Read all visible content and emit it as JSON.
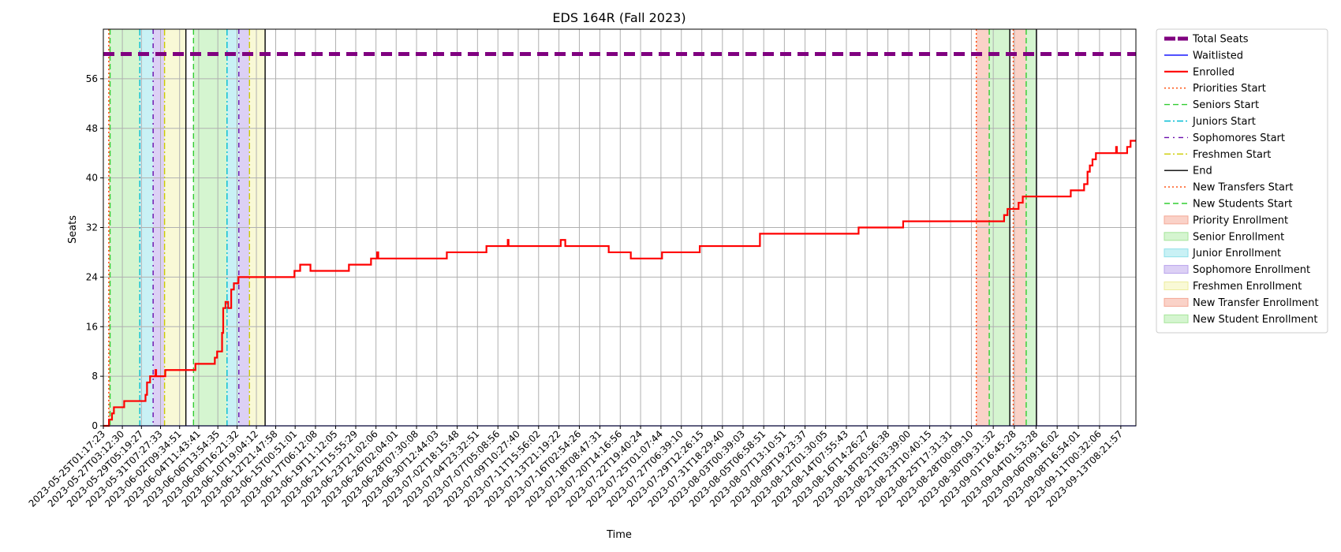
{
  "chart_data": {
    "type": "line",
    "title": "EDS 164R (Fall 2023)",
    "xlabel": "Time",
    "ylabel": "Seats",
    "ylim": [
      0,
      64
    ],
    "yticks": [
      0,
      8,
      16,
      24,
      32,
      40,
      48,
      56
    ],
    "grid": true,
    "legend_placement": "outside-right",
    "xrange": [
      "2023-05-25T01:17:23",
      "2023-09-15T00:00:00"
    ],
    "xticks": [
      "2023-05-25T01:17:23",
      "2023-05-27T03:12:30",
      "2023-05-29T05:19:27",
      "2023-05-31T07:27:33",
      "2023-06-02T09:34:51",
      "2023-06-04T11:43:41",
      "2023-06-06T13:54:35",
      "2023-06-08T16:21:32",
      "2023-06-10T19:04:12",
      "2023-06-12T21:47:58",
      "2023-06-15T00:51:01",
      "2023-06-17T06:12:08",
      "2023-06-19T11:12:05",
      "2023-06-21T15:55:29",
      "2023-06-23T21:02:06",
      "2023-06-26T02:04:01",
      "2023-06-28T07:30:08",
      "2023-06-30T12:44:03",
      "2023-07-02T18:15:48",
      "2023-07-04T23:32:51",
      "2023-07-07T05:08:56",
      "2023-07-09T10:27:40",
      "2023-07-11T15:56:02",
      "2023-07-13T21:19:22",
      "2023-07-16T02:54:26",
      "2023-07-18T08:47:31",
      "2023-07-20T14:16:56",
      "2023-07-22T19:40:24",
      "2023-07-25T01:07:44",
      "2023-07-27T06:39:10",
      "2023-07-29T12:26:15",
      "2023-07-31T18:29:40",
      "2023-08-03T00:39:03",
      "2023-08-05T06:58:51",
      "2023-08-07T13:10:51",
      "2023-08-09T19:23:37",
      "2023-08-12T01:30:05",
      "2023-08-14T07:55:43",
      "2023-08-16T14:26:27",
      "2023-08-18T20:56:38",
      "2023-08-21T03:39:00",
      "2023-08-23T10:40:15",
      "2023-08-25T17:31:31",
      "2023-08-28T00:09:10",
      "2023-08-30T09:31:32",
      "2023-09-01T16:45:28",
      "2023-09-04T01:53:28",
      "2023-09-06T09:16:02",
      "2023-09-08T16:54:01",
      "2023-09-11T00:32:06",
      "2023-09-13T08:21:57"
    ],
    "series": [
      {
        "name": "Total Seats",
        "color": "#800080",
        "style": "dashed-thick",
        "points": [
          [
            "2023-05-25T01:17:23",
            60
          ],
          [
            "2023-09-15T00:00:00",
            60
          ]
        ]
      },
      {
        "name": "Waitlisted",
        "color": "#0000ff",
        "style": "solid",
        "points": [
          [
            "2023-05-25T01:17:23",
            0
          ],
          [
            "2023-09-15T00:00:00",
            0
          ]
        ]
      },
      {
        "name": "Enrolled",
        "color": "#ff0000",
        "style": "step",
        "points": [
          [
            "2023-05-25T01:17:23",
            0
          ],
          [
            "2023-05-25T16:00:00",
            1
          ],
          [
            "2023-05-26T00:00:00",
            2
          ],
          [
            "2023-05-26T05:00:00",
            3
          ],
          [
            "2023-05-27T08:00:00",
            4
          ],
          [
            "2023-05-29T16:00:00",
            5
          ],
          [
            "2023-05-29T20:00:00",
            7
          ],
          [
            "2023-05-30T04:00:00",
            8
          ],
          [
            "2023-05-30T18:00:00",
            9
          ],
          [
            "2023-05-30T20:00:00",
            8
          ],
          [
            "2023-05-31T20:00:00",
            9
          ],
          [
            "2023-06-04T03:00:00",
            10
          ],
          [
            "2023-06-06T06:00:00",
            11
          ],
          [
            "2023-06-06T12:00:00",
            12
          ],
          [
            "2023-06-07T01:00:00",
            15
          ],
          [
            "2023-06-07T04:00:00",
            19
          ],
          [
            "2023-06-07T10:00:00",
            20
          ],
          [
            "2023-06-07T17:00:00",
            19
          ],
          [
            "2023-06-08T01:00:00",
            22
          ],
          [
            "2023-06-08T08:00:00",
            23
          ],
          [
            "2023-06-08T20:00:00",
            24
          ],
          [
            "2023-06-14T23:00:00",
            25
          ],
          [
            "2023-06-15T14:00:00",
            26
          ],
          [
            "2023-06-16T17:00:00",
            25
          ],
          [
            "2023-06-20T22:00:00",
            26
          ],
          [
            "2023-06-23T08:00:00",
            27
          ],
          [
            "2023-06-24T00:00:00",
            28
          ],
          [
            "2023-06-24T03:00:00",
            27
          ],
          [
            "2023-07-01T15:00:00",
            28
          ],
          [
            "2023-07-05T23:00:00",
            29
          ],
          [
            "2023-07-08T07:00:00",
            30
          ],
          [
            "2023-07-08T09:00:00",
            29
          ],
          [
            "2023-07-14T02:00:00",
            30
          ],
          [
            "2023-07-14T14:00:00",
            29
          ],
          [
            "2023-07-19T08:00:00",
            28
          ],
          [
            "2023-07-21T18:00:00",
            27
          ],
          [
            "2023-07-25T04:00:00",
            28
          ],
          [
            "2023-07-29T07:00:00",
            29
          ],
          [
            "2023-08-04T21:00:00",
            31
          ],
          [
            "2023-08-15T16:00:00",
            32
          ],
          [
            "2023-08-20T13:00:00",
            33
          ],
          [
            "2023-08-31T14:00:00",
            34
          ],
          [
            "2023-08-31T23:00:00",
            35
          ],
          [
            "2023-09-02T04:00:00",
            36
          ],
          [
            "2023-09-02T15:00:00",
            37
          ],
          [
            "2023-09-07T21:00:00",
            38
          ],
          [
            "2023-09-09T08:00:00",
            39
          ],
          [
            "2023-09-09T17:00:00",
            41
          ],
          [
            "2023-09-09T23:00:00",
            42
          ],
          [
            "2023-09-10T06:00:00",
            43
          ],
          [
            "2023-09-10T15:00:00",
            44
          ],
          [
            "2023-09-12T20:00:00",
            45
          ],
          [
            "2023-09-12T22:00:00",
            44
          ],
          [
            "2023-09-14T01:00:00",
            45
          ],
          [
            "2023-09-14T10:00:00",
            46
          ],
          [
            "2023-09-15T00:00:00",
            46
          ]
        ]
      }
    ],
    "events": [
      {
        "name": "Priorities Start",
        "color": "#ff4500",
        "dash": "dotted",
        "times": [
          "2023-05-25T15:30:00",
          "2023-08-28T13:00:00"
        ]
      },
      {
        "name": "Seniors Start",
        "color": "#32cd32",
        "dash": "dashed",
        "times": [
          "2023-05-25T19:00:00",
          "2023-06-03T22:00:00",
          "2023-08-29T23:00:00"
        ]
      },
      {
        "name": "Juniors Start",
        "color": "#00bcd4",
        "dash": "dashdot",
        "times": [
          "2023-05-29T01:00:00",
          "2023-06-07T14:00:00"
        ]
      },
      {
        "name": "Sophomores Start",
        "color": "#6a0dad",
        "dash": "dashdot-purple",
        "times": [
          "2023-05-30T12:00:00",
          "2023-06-08T21:00:00"
        ]
      },
      {
        "name": "Freshmen Start",
        "color": "#cccc00",
        "dash": "dashdot",
        "times": [
          "2023-05-31T18:00:00",
          "2023-06-10T01:00:00"
        ]
      },
      {
        "name": "End",
        "color": "#000000",
        "dash": "solid",
        "times": [
          "2023-06-03T02:00:00",
          "2023-06-11T18:00:00",
          "2023-09-01T05:00:00",
          "2023-09-04T03:00:00"
        ]
      },
      {
        "name": "New Transfers Start",
        "color": "#ff4500",
        "dash": "dotted",
        "times": [
          "2023-09-01T14:00:00"
        ]
      },
      {
        "name": "New Students Start",
        "color": "#32cd32",
        "dash": "dashed",
        "times": [
          "2023-09-03T00:00:00"
        ]
      }
    ],
    "periods": [
      {
        "name": "Priority Enrollment",
        "color": "#fad2c8",
        "spans": [
          [
            "2023-05-25T15:30:00",
            "2023-05-25T19:00:00"
          ],
          [
            "2023-08-28T13:00:00",
            "2023-08-29T23:00:00"
          ]
        ]
      },
      {
        "name": "Senior Enrollment",
        "color": "#d5f5d0",
        "spans": [
          [
            "2023-05-25T19:00:00",
            "2023-05-29T01:00:00"
          ],
          [
            "2023-06-03T22:00:00",
            "2023-06-07T14:00:00"
          ],
          [
            "2023-08-29T23:00:00",
            "2023-09-01T05:00:00"
          ]
        ]
      },
      {
        "name": "Junior Enrollment",
        "color": "#c9f1f5",
        "spans": [
          [
            "2023-05-29T01:00:00",
            "2023-05-30T12:00:00"
          ],
          [
            "2023-06-07T14:00:00",
            "2023-06-08T21:00:00"
          ]
        ]
      },
      {
        "name": "Sophomore Enrollment",
        "color": "#dcd0f5",
        "spans": [
          [
            "2023-05-30T12:00:00",
            "2023-05-31T18:00:00"
          ],
          [
            "2023-06-08T21:00:00",
            "2023-06-10T01:00:00"
          ]
        ]
      },
      {
        "name": "Freshmen Enrollment",
        "color": "#f9f9d6",
        "spans": [
          [
            "2023-05-31T18:00:00",
            "2023-06-03T02:00:00"
          ],
          [
            "2023-06-10T01:00:00",
            "2023-06-11T18:00:00"
          ]
        ]
      },
      {
        "name": "New Transfer Enrollment",
        "color": "#fad2c8",
        "spans": [
          [
            "2023-09-01T14:00:00",
            "2023-09-03T00:00:00"
          ]
        ]
      },
      {
        "name": "New Student Enrollment",
        "color": "#d5f5d0",
        "spans": [
          [
            "2023-09-03T00:00:00",
            "2023-09-04T03:00:00"
          ]
        ]
      }
    ],
    "legend": [
      {
        "label": "Total Seats",
        "kind": "line",
        "color": "#800080",
        "dash": "dashed-thick"
      },
      {
        "label": "Waitlisted",
        "kind": "line",
        "color": "#0000ff",
        "dash": "solid"
      },
      {
        "label": "Enrolled",
        "kind": "line",
        "color": "#ff0000",
        "dash": "solid-thick"
      },
      {
        "label": "Priorities Start",
        "kind": "line",
        "color": "#ff4500",
        "dash": "dotted"
      },
      {
        "label": "Seniors Start",
        "kind": "line",
        "color": "#32cd32",
        "dash": "dashed"
      },
      {
        "label": "Juniors Start",
        "kind": "line",
        "color": "#00bcd4",
        "dash": "dashdot"
      },
      {
        "label": "Sophomores Start",
        "kind": "line",
        "color": "#6a0dad",
        "dash": "dashdot-purple"
      },
      {
        "label": "Freshmen Start",
        "kind": "line",
        "color": "#cccc00",
        "dash": "dashdot"
      },
      {
        "label": "End",
        "kind": "line",
        "color": "#000000",
        "dash": "solid"
      },
      {
        "label": "New Transfers Start",
        "kind": "line",
        "color": "#ff4500",
        "dash": "dotted"
      },
      {
        "label": "New Students Start",
        "kind": "line",
        "color": "#32cd32",
        "dash": "dashed"
      },
      {
        "label": "Priority Enrollment",
        "kind": "patch",
        "color": "#fad2c8",
        "edge": "#f4a896"
      },
      {
        "label": "Senior Enrollment",
        "kind": "patch",
        "color": "#d5f5d0",
        "edge": "#a6e59a"
      },
      {
        "label": "Junior Enrollment",
        "kind": "patch",
        "color": "#c9f1f5",
        "edge": "#8fe0ea"
      },
      {
        "label": "Sophomore Enrollment",
        "kind": "patch",
        "color": "#dcd0f5",
        "edge": "#b9a3ec"
      },
      {
        "label": "Freshmen Enrollment",
        "kind": "patch",
        "color": "#f9f9d6",
        "edge": "#eded9e"
      },
      {
        "label": "New Transfer Enrollment",
        "kind": "patch",
        "color": "#fad2c8",
        "edge": "#f4a896"
      },
      {
        "label": "New Student Enrollment",
        "kind": "patch",
        "color": "#d5f5d0",
        "edge": "#a6e59a"
      }
    ]
  }
}
